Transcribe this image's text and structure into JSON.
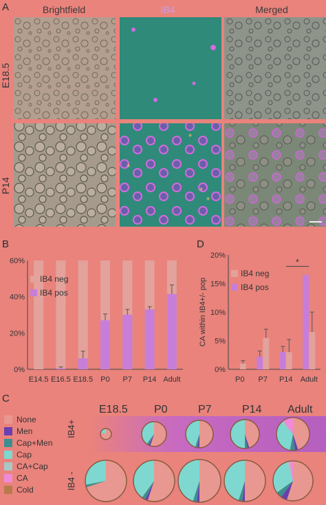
{
  "panel_a": {
    "letter": "A",
    "columns": [
      "Brightfield",
      "IB4",
      "Merged"
    ],
    "rows": [
      "E18.5",
      "P14"
    ]
  },
  "panel_b": {
    "letter": "B",
    "chart_data": {
      "type": "bar",
      "categories": [
        "E14.5",
        "E16.5",
        "E18.5",
        "P0",
        "P7",
        "P14",
        "Adult"
      ],
      "series": [
        {
          "name": "IB4 neg",
          "values": [
            60,
            60,
            60,
            60,
            60,
            60,
            60
          ]
        },
        {
          "name": "IB4 pos",
          "values": [
            0,
            0.5,
            6,
            27,
            30,
            33,
            41.5
          ],
          "errors": [
            0,
            0.8,
            4,
            3.5,
            3,
            1.5,
            5
          ]
        }
      ],
      "yticks": [
        "0%",
        "20%",
        "40%",
        "60%"
      ],
      "ylim": [
        0,
        60
      ],
      "legend": "top-left",
      "colors": {
        "neg": "#e3a29b",
        "pos": "#c77ed9"
      }
    }
  },
  "panel_c": {
    "letter": "C",
    "legend": [
      {
        "label": "None",
        "color": "#e89890"
      },
      {
        "label": "Men",
        "color": "#6a3fb0"
      },
      {
        "label": "Cap+Men",
        "color": "#3d8f8f"
      },
      {
        "label": "Cap",
        "color": "#7ed8d0"
      },
      {
        "label": "CA+Cap",
        "color": "#a9c8c4"
      },
      {
        "label": "CA",
        "color": "#f08ad8"
      },
      {
        "label": "Cold",
        "color": "#b87a4a"
      }
    ],
    "columns": [
      "E18.5",
      "P0",
      "P7",
      "P14",
      "Adult"
    ],
    "rows": [
      "IB4+",
      "IB4 -"
    ]
  },
  "panel_d": {
    "letter": "D",
    "chart_data": {
      "type": "bar",
      "categories": [
        "P0",
        "P7",
        "P14",
        "Adult"
      ],
      "series": [
        {
          "name": "IB4 neg",
          "values": [
            1,
            5.5,
            3,
            6.5
          ],
          "errors": [
            0.5,
            1.5,
            2.2,
            3.5
          ]
        },
        {
          "name": "IB4 pos",
          "values": [
            0,
            2.2,
            3,
            16.5
          ],
          "errors": [
            0,
            1,
            1,
            0
          ]
        }
      ],
      "ylabel": "CA within IB4+/- pop",
      "yticks": [
        "0%",
        "5%",
        "10%",
        "15%",
        "20%"
      ],
      "ylim": [
        0,
        20
      ],
      "significance": "*",
      "legend": "top-left"
    }
  }
}
